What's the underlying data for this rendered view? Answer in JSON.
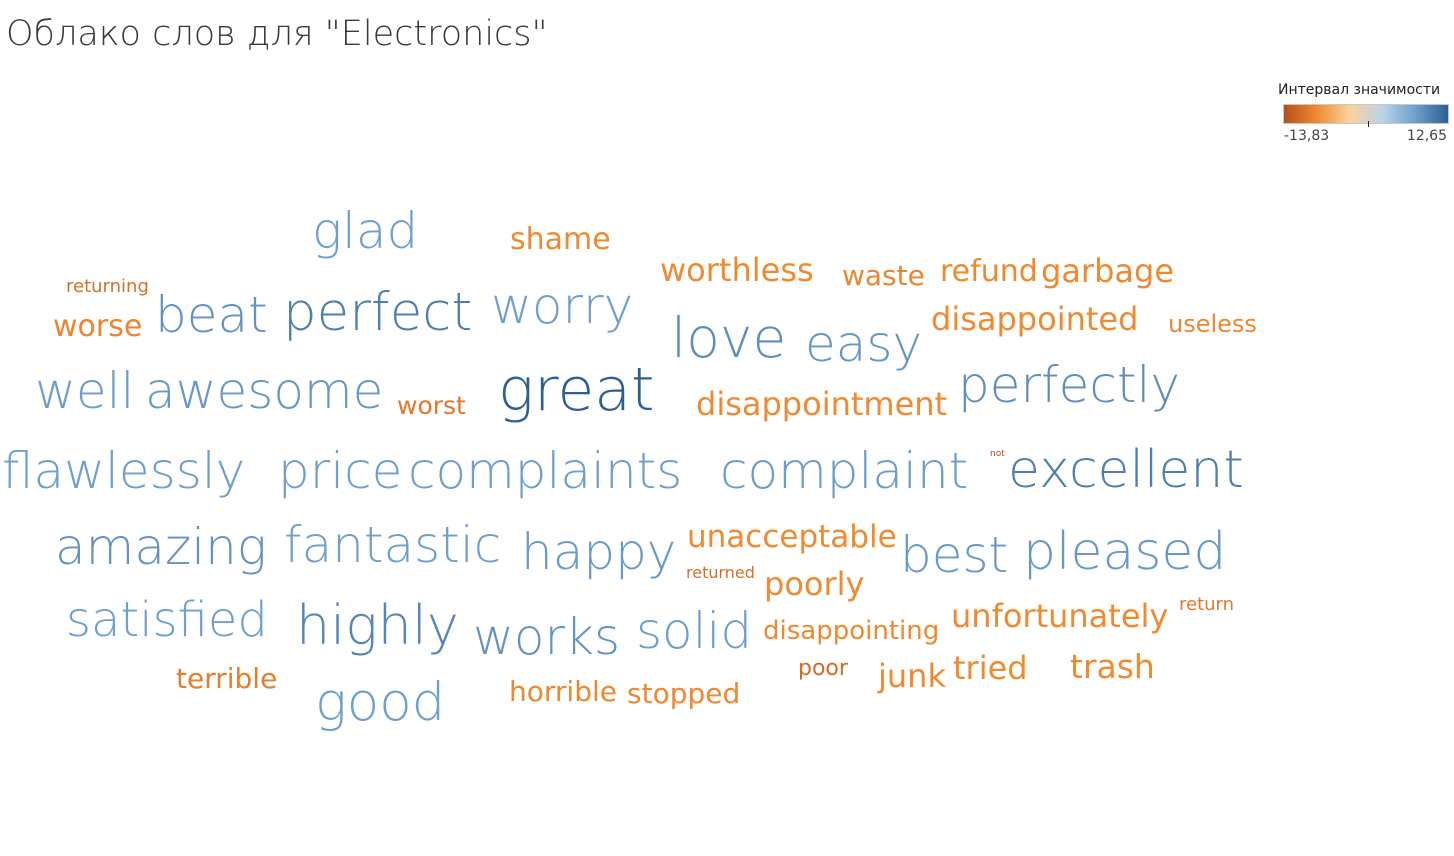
{
  "title": "Облако слов для \"Electronics\"",
  "legend": {
    "title": "Интервал значимости",
    "min_label": "-13,83",
    "max_label": "12,65"
  },
  "chart_data": {
    "type": "wordcloud",
    "title": "Облако слов для \"Electronics\"",
    "color_scale": {
      "min": -13.83,
      "max": 12.65,
      "diverging_center": 0,
      "negative_color": "#b5501c",
      "negative_mid_color": "#f08a31",
      "center_low_color": "#fbd29b",
      "center_high_color": "#b9d4e8",
      "positive_mid_color": "#6f9fcc",
      "positive_color": "#2d5f93"
    },
    "words": [
      {
        "text": "glad",
        "value": 6.2
      },
      {
        "text": "shame",
        "value": -5.5
      },
      {
        "text": "worthless",
        "value": -6.5
      },
      {
        "text": "waste",
        "value": -7.5
      },
      {
        "text": "refund",
        "value": -7.0
      },
      {
        "text": "garbage",
        "value": -7.0
      },
      {
        "text": "returning",
        "value": -10.0
      },
      {
        "text": "beat",
        "value": 7.5
      },
      {
        "text": "perfect",
        "value": 9.5
      },
      {
        "text": "worry",
        "value": 5.5
      },
      {
        "text": "love",
        "value": 8.0
      },
      {
        "text": "easy",
        "value": 7.2
      },
      {
        "text": "disappointed",
        "value": -6.8
      },
      {
        "text": "useless",
        "value": -7.2
      },
      {
        "text": "worse",
        "value": -7.5
      },
      {
        "text": "well",
        "value": 6.5
      },
      {
        "text": "awesome",
        "value": 7.0
      },
      {
        "text": "worst",
        "value": -9.0
      },
      {
        "text": "great",
        "value": 12.65
      },
      {
        "text": "disappointment",
        "value": -6.0
      },
      {
        "text": "perfectly",
        "value": 8.0
      },
      {
        "text": "flawlessly",
        "value": 6.3
      },
      {
        "text": "price",
        "value": 6.0
      },
      {
        "text": "complaints",
        "value": 6.0
      },
      {
        "text": "complaint",
        "value": 6.5
      },
      {
        "text": "not",
        "value": -13.83
      },
      {
        "text": "excellent",
        "value": 9.5
      },
      {
        "text": "amazing",
        "value": 7.5
      },
      {
        "text": "fantastic",
        "value": 6.0
      },
      {
        "text": "happy",
        "value": 6.8
      },
      {
        "text": "unacceptable",
        "value": -6.5
      },
      {
        "text": "best",
        "value": 7.0
      },
      {
        "text": "pleased",
        "value": 7.0
      },
      {
        "text": "returned",
        "value": -10.0
      },
      {
        "text": "poorly",
        "value": -6.3
      },
      {
        "text": "satisfied",
        "value": 6.0
      },
      {
        "text": "highly",
        "value": 8.8
      },
      {
        "text": "works",
        "value": 7.5
      },
      {
        "text": "solid",
        "value": 6.0
      },
      {
        "text": "disappointing",
        "value": -7.0
      },
      {
        "text": "unfortunately",
        "value": -6.8
      },
      {
        "text": "return",
        "value": -9.0
      },
      {
        "text": "terrible",
        "value": -8.2
      },
      {
        "text": "poor",
        "value": -10.5
      },
      {
        "text": "junk",
        "value": -6.5
      },
      {
        "text": "tried",
        "value": -6.5
      },
      {
        "text": "trash",
        "value": -6.3
      },
      {
        "text": "horrible",
        "value": -7.2
      },
      {
        "text": "stopped",
        "value": -7.0
      },
      {
        "text": "good",
        "value": 5.8
      }
    ]
  }
}
